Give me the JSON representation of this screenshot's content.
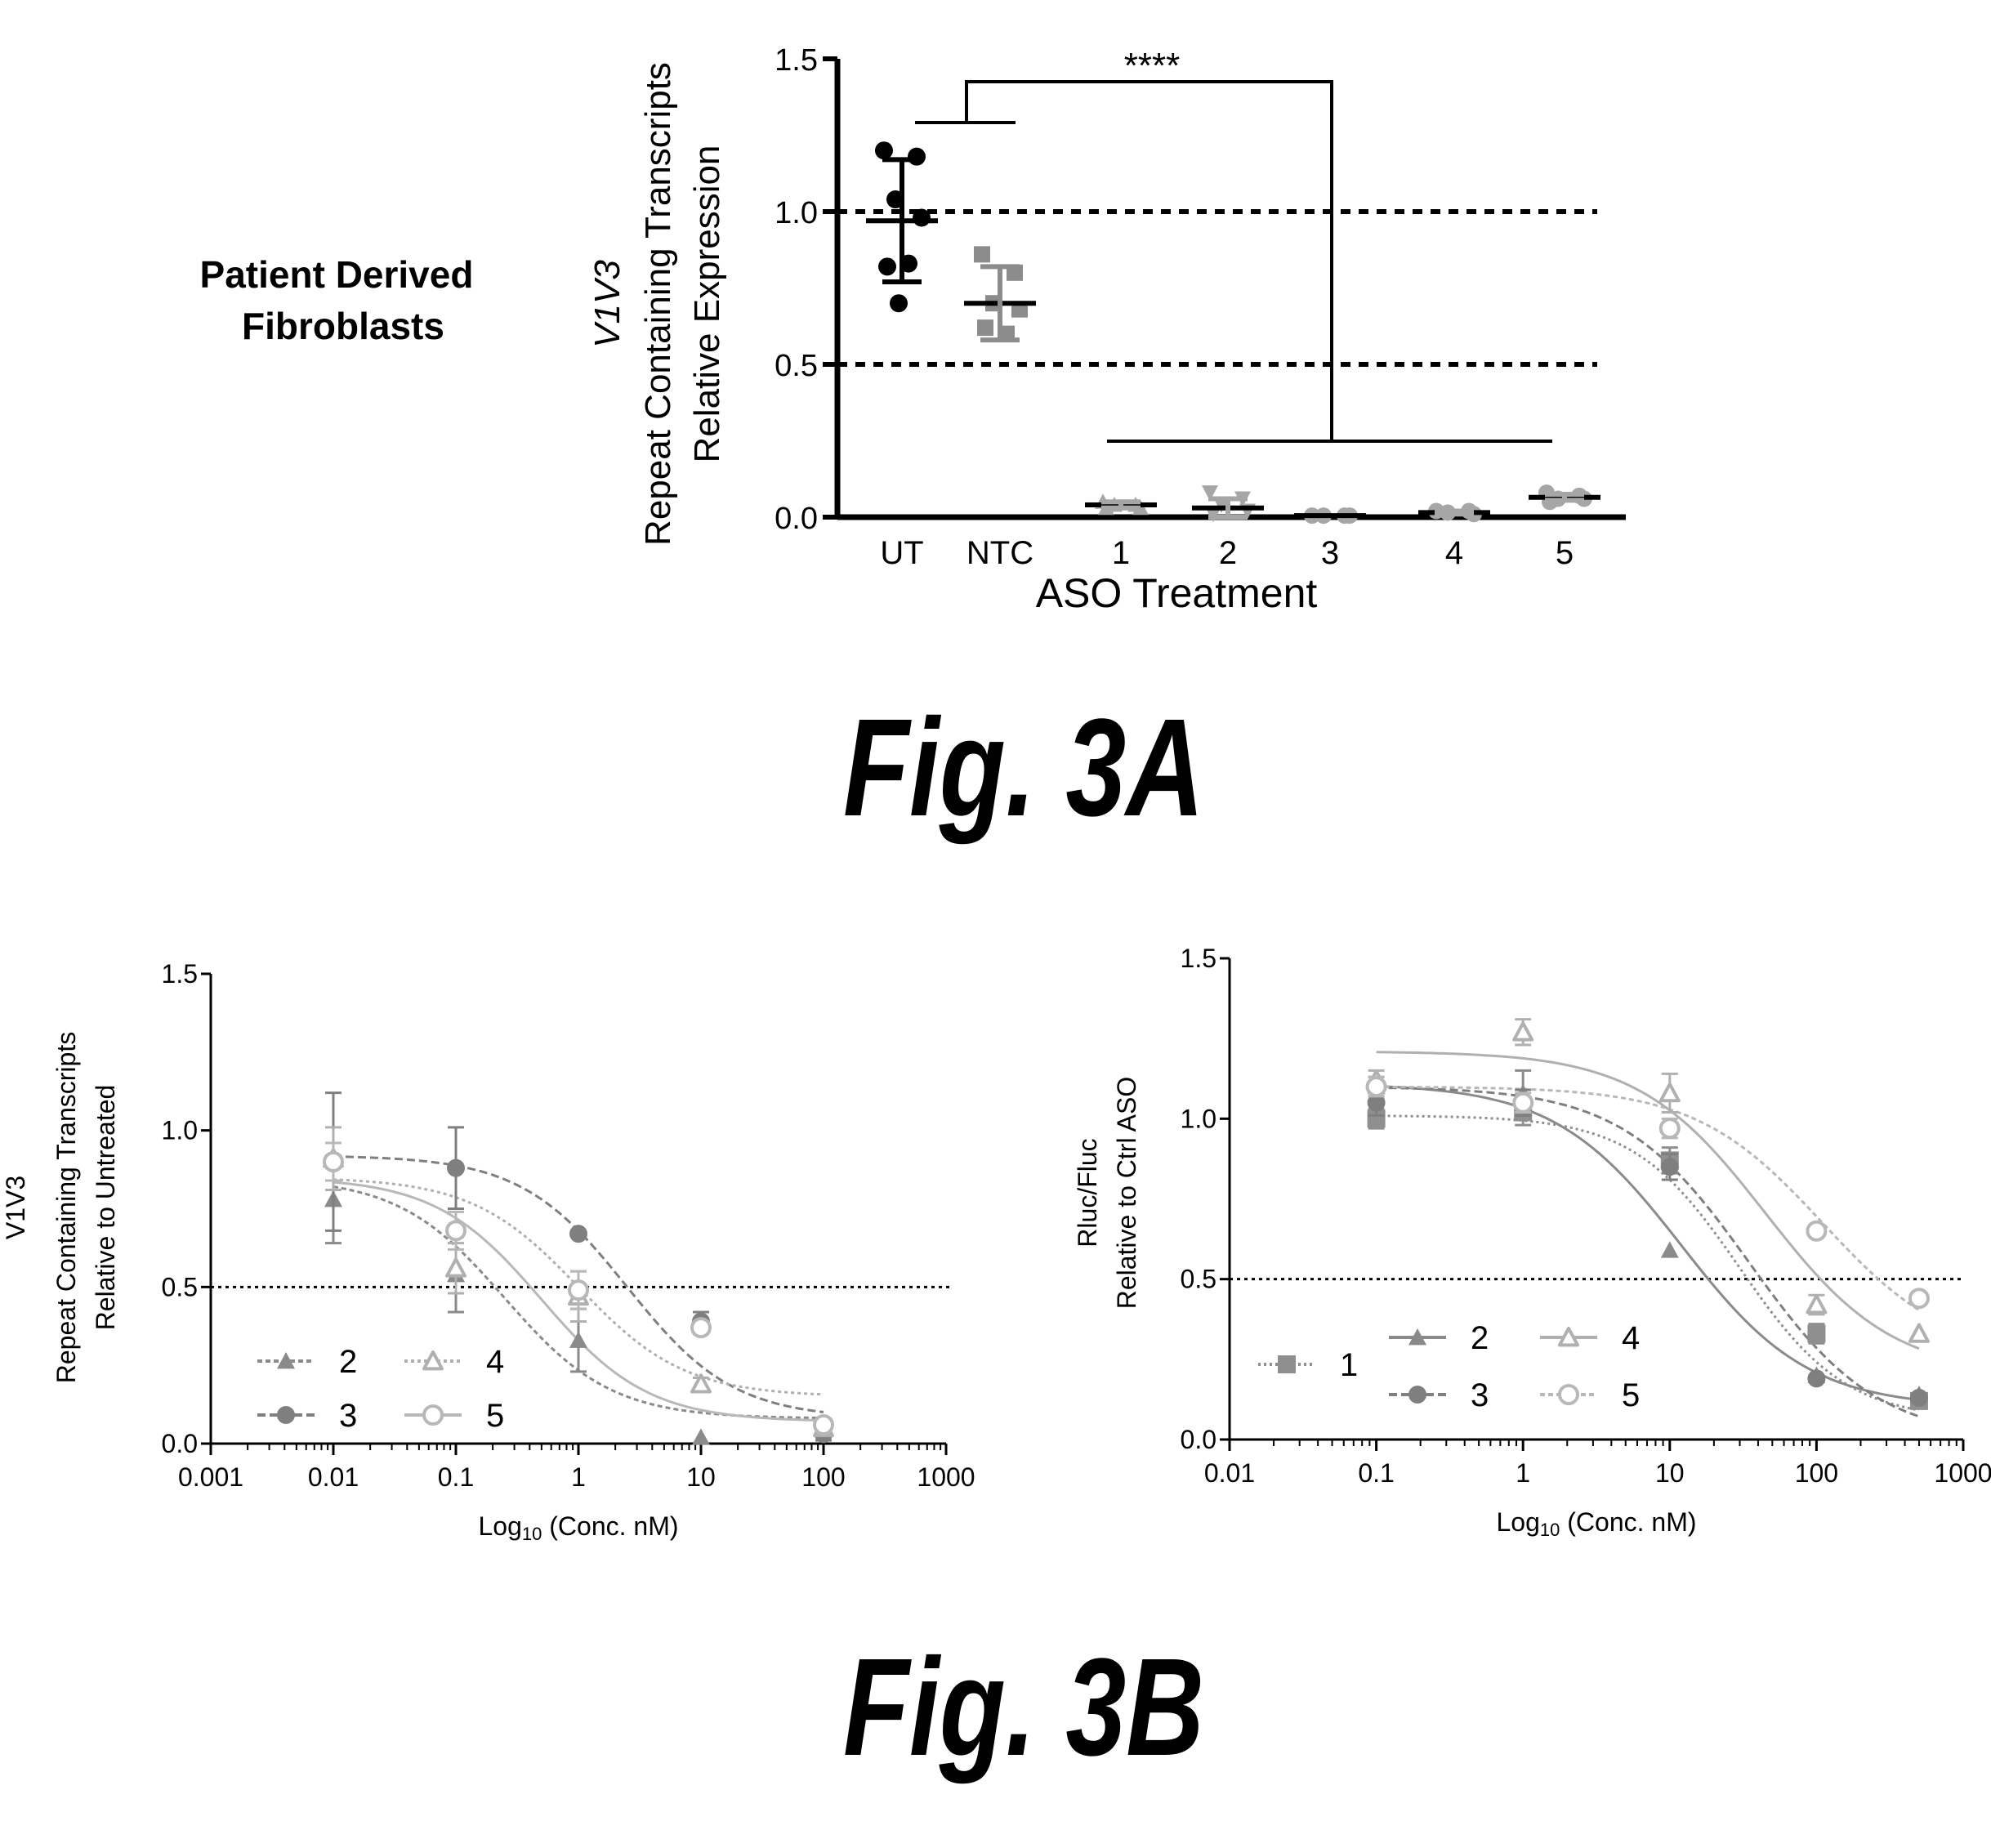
{
  "figure_labels": {
    "fig3a": "Fig. 3A",
    "fig3b": "Fig. 3B"
  },
  "panel_a": {
    "side_title": [
      "Patient Derived",
      "Fibroblasts"
    ],
    "significance": "****"
  },
  "chart_data": [
    {
      "id": "fig3a",
      "type": "scatter",
      "title": "",
      "ylabel_lines": [
        "V1V3",
        "Repeat Containing Transcripts",
        "Relative Expression"
      ],
      "xlabel": "ASO Treatment",
      "categories": [
        "UT",
        "NTC",
        "1",
        "2",
        "3",
        "4",
        "5"
      ],
      "ylim": [
        0,
        1.5
      ],
      "yticks": [
        "0.0",
        "0.5",
        "1.0",
        "1.5"
      ],
      "reference_lines": [
        1.0,
        0.5
      ],
      "colors": {
        "UT": "#000000",
        "NTC": "#8c8c8c",
        "treated": "#a6a6a6"
      },
      "markers": [
        "circle",
        "square",
        "triangle",
        "triangle-down",
        "circle",
        "circle",
        "circle"
      ],
      "points": [
        [
          1.2,
          1.18,
          1.04,
          0.98,
          0.82,
          0.83,
          0.7
        ],
        [
          0.86,
          0.8,
          0.7,
          0.68,
          0.62,
          0.6
        ],
        [
          0.05,
          0.04,
          0.04,
          0.03,
          0.03
        ],
        [
          0.08,
          0.06,
          0.04,
          0.02,
          0.01
        ],
        [
          0.005,
          0.005,
          0.005,
          0.005
        ],
        [
          0.02,
          0.02,
          0.015,
          0.01
        ],
        [
          0.08,
          0.07,
          0.06,
          0.06,
          0.05
        ]
      ],
      "means": [
        0.97,
        0.7,
        0.04,
        0.03,
        0.005,
        0.015,
        0.065
      ],
      "errors": [
        0.2,
        0.12,
        0.01,
        0.03,
        0.0,
        0.005,
        0.01
      ]
    },
    {
      "id": "fig3b-left",
      "type": "line",
      "title": "",
      "ylabel_lines": [
        "V1V3",
        "Repeat Containing Transcripts",
        "Relative to Untreated"
      ],
      "xlabel": "Log10 (Conc. nM)",
      "x_scale": "log",
      "xlim": [
        0.001,
        1000
      ],
      "xticks": [
        "0.001",
        "0.01",
        "0.1",
        "1",
        "10",
        "100",
        "1000"
      ],
      "ylim": [
        0,
        1.5
      ],
      "yticks": [
        "0.0",
        "0.5",
        "1.0",
        "1.5"
      ],
      "reference_line": 0.5,
      "x": [
        0.01,
        0.1,
        1,
        10,
        100
      ],
      "series": [
        {
          "name": "2",
          "marker": "triangle",
          "dash": "6,4",
          "color": "#8a8a8a",
          "values": [
            0.78,
            0.54,
            0.33,
            0.02,
            0.06
          ],
          "errors": [
            0.14,
            0.12,
            0.1,
            0.0,
            0.0
          ],
          "fit": {
            "top": 0.85,
            "bottom": 0.08,
            "ic50": 0.25,
            "hill": 1.0
          }
        },
        {
          "name": "3",
          "marker": "circle",
          "dash": "10,5",
          "color": "#7f7f7f",
          "values": [
            0.9,
            0.88,
            0.67,
            0.39,
            0.03
          ],
          "errors": [
            0.22,
            0.13,
            0.0,
            0.03,
            0.02
          ],
          "fit": {
            "top": 0.92,
            "bottom": 0.08,
            "ic50": 2.5,
            "hill": 1.0
          }
        },
        {
          "name": "4",
          "marker": "triangle-open",
          "dash": "4,4",
          "color": "#b0b0b0",
          "values": [
            0.91,
            0.56,
            0.47,
            0.19,
            0.05
          ],
          "errors": [
            0.1,
            0.08,
            0.08,
            0.02,
            0.02
          ],
          "fit": {
            "top": 0.85,
            "bottom": 0.15,
            "ic50": 1.0,
            "hill": 1.0
          }
        },
        {
          "name": "5",
          "marker": "circle-open",
          "dash": "none",
          "color": "#b8b8b8",
          "values": [
            0.9,
            0.68,
            0.49,
            0.37,
            0.06
          ],
          "errors": [
            0.06,
            0.06,
            0.06,
            0.02,
            0.02
          ],
          "fit": {
            "top": 0.85,
            "bottom": 0.07,
            "ic50": 0.5,
            "hill": 1.0
          }
        }
      ]
    },
    {
      "id": "fig3b-right",
      "type": "line",
      "title": "",
      "ylabel_lines": [
        "Rluc/Fluc",
        "Relative to Ctrl ASO"
      ],
      "xlabel": "Log10 (Conc. nM)",
      "x_scale": "log",
      "xlim": [
        0.01,
        1000
      ],
      "xticks": [
        "0.01",
        "0.1",
        "1",
        "10",
        "100",
        "1000"
      ],
      "ylim": [
        0,
        1.5
      ],
      "yticks": [
        "0.0",
        "0.5",
        "1.0",
        "1.5"
      ],
      "reference_line": 0.5,
      "x": [
        0.1,
        1,
        10,
        100,
        500
      ],
      "series": [
        {
          "name": "1",
          "marker": "square",
          "dash": "3,4",
          "color": "#8f8f8f",
          "values": [
            1.0,
            1.02,
            0.87,
            0.33,
            0.12
          ],
          "errors": [
            0.03,
            0.04,
            0.04,
            0.03,
            0.02
          ],
          "fit": {
            "top": 1.01,
            "bottom": 0.06,
            "ic50": 30,
            "hill": 1.2
          }
        },
        {
          "name": "2",
          "marker": "triangle",
          "dash": "none",
          "color": "#8a8a8a",
          "values": [
            1.1,
            1.08,
            0.59,
            0.2,
            0.14
          ],
          "errors": [
            0.03,
            0.07,
            0.0,
            0.0,
            0.0
          ],
          "fit": {
            "top": 1.11,
            "bottom": 0.1,
            "ic50": 12,
            "hill": 1.0
          }
        },
        {
          "name": "3",
          "marker": "circle",
          "dash": "10,5",
          "color": "#7f7f7f",
          "values": [
            1.05,
            1.05,
            0.85,
            0.19,
            0.13
          ],
          "errors": [
            0.04,
            0.04,
            0.04,
            0.0,
            0.0
          ],
          "fit": {
            "top": 1.1,
            "bottom": 0.0,
            "ic50": 35,
            "hill": 1.0
          }
        },
        {
          "name": "4",
          "marker": "triangle-open",
          "dash": "none",
          "color": "#b0b0b0",
          "values": [
            1.12,
            1.27,
            1.08,
            0.42,
            0.33
          ],
          "errors": [
            0.03,
            0.04,
            0.06,
            0.03,
            0.0
          ],
          "fit": {
            "top": 1.21,
            "bottom": 0.2,
            "ic50": 45,
            "hill": 1.0
          }
        },
        {
          "name": "5",
          "marker": "circle-open",
          "dash": "6,4",
          "color": "#b8b8b8",
          "values": [
            1.1,
            1.05,
            0.97,
            0.65,
            0.44
          ],
          "errors": [
            0.03,
            0.03,
            0.03,
            0.0,
            0.0
          ],
          "fit": {
            "top": 1.1,
            "bottom": 0.25,
            "ic50": 110,
            "hill": 1.0
          }
        }
      ]
    }
  ]
}
